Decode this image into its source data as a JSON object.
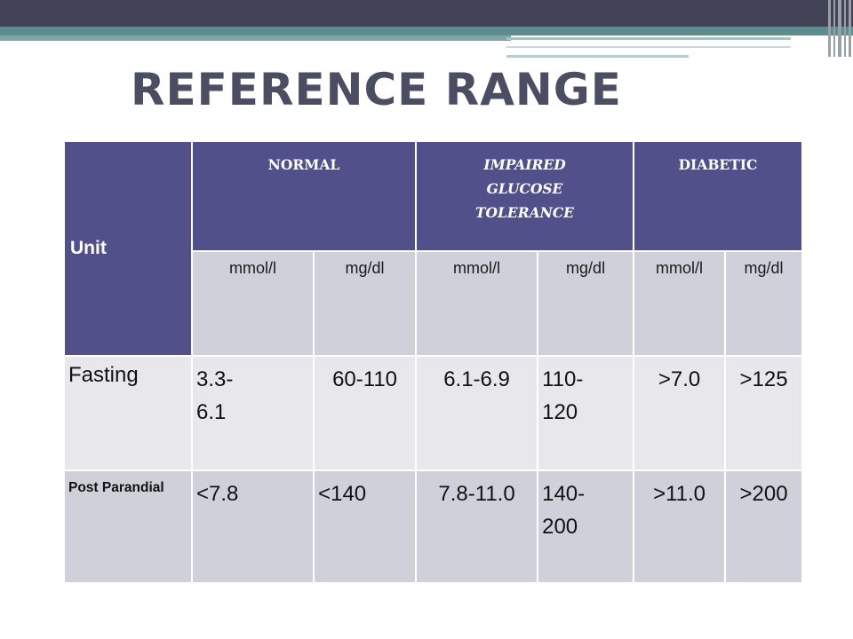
{
  "slide": {
    "title": "REFERENCE RANGE"
  },
  "table": {
    "unit_label": "Unit",
    "groups": [
      "NORMAL",
      "IMPAIRED GLUCOSE TOLERANCE",
      "DIABETIC"
    ],
    "units": [
      "mmol/l",
      "mg/dl",
      "mmol/l",
      "mg/dl",
      "mmol/l",
      "mg/dl"
    ],
    "rows": [
      {
        "label": "Fasting",
        "values": [
          "3.3-6.1",
          "60-110",
          "6.1-6.9",
          "110-120",
          ">7.0",
          ">125"
        ]
      },
      {
        "label": "Post Parandial",
        "values": [
          "<7.8",
          "<140",
          "7.8-11.0",
          "140-200",
          ">11.0",
          ">200"
        ]
      }
    ]
  },
  "colors": {
    "header_bg": "#52508a",
    "row_light": "#e7e7ec",
    "row_dark": "#d0d0da",
    "title": "#4b4e63",
    "top_bar": "#434358",
    "accent_teal": "#5e8d8f"
  }
}
